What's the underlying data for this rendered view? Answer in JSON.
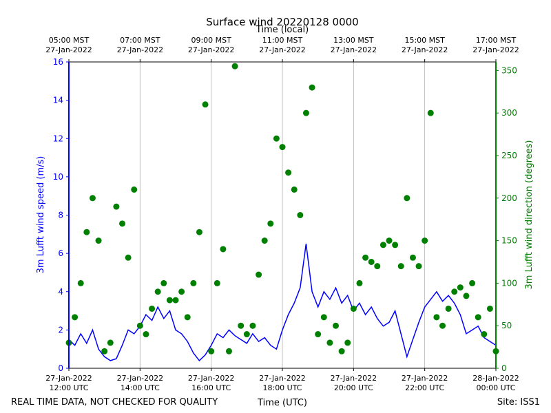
{
  "chart_data": {
    "type": "line_scatter",
    "title": "Surface wind 20220128 0000",
    "x2_label": "Time (local)",
    "xlabel": "Time (UTC)",
    "ylabel": "3m Lufft wind speed (m/s)",
    "y2label": "3m Lufft wind direction (degrees)",
    "footnote_left": "REAL TIME DATA, NOT CHECKED FOR QUALITY",
    "footnote_right": "Site: ISS1",
    "xlim": [
      "2022-01-27T12:00",
      "2022-01-28T00:00"
    ],
    "xticks": [
      {
        "value": "2022-01-27T12:00",
        "label": "27-Jan-2022\n12:00 UTC"
      },
      {
        "value": "2022-01-27T14:00",
        "label": "27-Jan-2022\n14:00 UTC"
      },
      {
        "value": "2022-01-27T16:00",
        "label": "27-Jan-2022\n16:00 UTC"
      },
      {
        "value": "2022-01-27T18:00",
        "label": "27-Jan-2022\n18:00 UTC"
      },
      {
        "value": "2022-01-27T20:00",
        "label": "27-Jan-2022\n20:00 UTC"
      },
      {
        "value": "2022-01-27T22:00",
        "label": "27-Jan-2022\n22:00 UTC"
      },
      {
        "value": "2022-01-28T00:00",
        "label": "28-Jan-2022\n00:00 UTC"
      }
    ],
    "x2ticks": [
      {
        "value": "2022-01-27T12:00",
        "label": "05:00 MST\n27-Jan-2022"
      },
      {
        "value": "2022-01-27T14:00",
        "label": "07:00 MST\n27-Jan-2022"
      },
      {
        "value": "2022-01-27T16:00",
        "label": "09:00 MST\n27-Jan-2022"
      },
      {
        "value": "2022-01-27T18:00",
        "label": "11:00 MST\n27-Jan-2022"
      },
      {
        "value": "2022-01-27T20:00",
        "label": "13:00 MST\n27-Jan-2022"
      },
      {
        "value": "2022-01-27T22:00",
        "label": "15:00 MST\n27-Jan-2022"
      },
      {
        "value": "2022-01-28T00:00",
        "label": "17:00 MST\n27-Jan-2022"
      }
    ],
    "ylim": [
      0,
      16
    ],
    "yticks": [
      0,
      2,
      4,
      6,
      8,
      10,
      12,
      14,
      16
    ],
    "y2lim": [
      0,
      360
    ],
    "y2ticks": [
      0,
      50,
      100,
      150,
      200,
      250,
      300,
      350
    ],
    "grid": true,
    "x": [
      "2022-01-27T12:00",
      "2022-01-27T12:10",
      "2022-01-27T12:20",
      "2022-01-27T12:30",
      "2022-01-27T12:40",
      "2022-01-27T12:50",
      "2022-01-27T13:00",
      "2022-01-27T13:10",
      "2022-01-27T13:20",
      "2022-01-27T13:30",
      "2022-01-27T13:40",
      "2022-01-27T13:50",
      "2022-01-27T14:00",
      "2022-01-27T14:10",
      "2022-01-27T14:20",
      "2022-01-27T14:30",
      "2022-01-27T14:40",
      "2022-01-27T14:50",
      "2022-01-27T15:00",
      "2022-01-27T15:10",
      "2022-01-27T15:20",
      "2022-01-27T15:30",
      "2022-01-27T15:40",
      "2022-01-27T15:50",
      "2022-01-27T16:00",
      "2022-01-27T16:10",
      "2022-01-27T16:20",
      "2022-01-27T16:30",
      "2022-01-27T16:40",
      "2022-01-27T16:50",
      "2022-01-27T17:00",
      "2022-01-27T17:10",
      "2022-01-27T17:20",
      "2022-01-27T17:30",
      "2022-01-27T17:40",
      "2022-01-27T17:50",
      "2022-01-27T18:00",
      "2022-01-27T18:10",
      "2022-01-27T18:20",
      "2022-01-27T18:30",
      "2022-01-27T18:40",
      "2022-01-27T18:50",
      "2022-01-27T19:00",
      "2022-01-27T19:10",
      "2022-01-27T19:20",
      "2022-01-27T19:30",
      "2022-01-27T19:40",
      "2022-01-27T19:50",
      "2022-01-27T20:00",
      "2022-01-27T20:10",
      "2022-01-27T20:20",
      "2022-01-27T20:30",
      "2022-01-27T20:40",
      "2022-01-27T20:50",
      "2022-01-27T21:00",
      "2022-01-27T21:10",
      "2022-01-27T21:20",
      "2022-01-27T21:30",
      "2022-01-27T21:40",
      "2022-01-27T21:50",
      "2022-01-27T22:00",
      "2022-01-27T22:10",
      "2022-01-27T22:20",
      "2022-01-27T22:30",
      "2022-01-27T22:40",
      "2022-01-27T22:50",
      "2022-01-27T23:00",
      "2022-01-27T23:10",
      "2022-01-27T23:20",
      "2022-01-27T23:30",
      "2022-01-27T23:40",
      "2022-01-27T23:50",
      "2022-01-28T00:00"
    ],
    "series": [
      {
        "name": "3m Lufft wind speed (m/s)",
        "color": "#0000ff",
        "axis": "y",
        "values": [
          1.5,
          1.2,
          1.8,
          1.3,
          2.0,
          1.0,
          0.6,
          0.4,
          0.5,
          1.2,
          2.0,
          1.8,
          2.2,
          2.8,
          2.5,
          3.2,
          2.6,
          3.0,
          2.0,
          1.8,
          1.4,
          0.8,
          0.4,
          0.7,
          1.2,
          1.8,
          1.6,
          2.0,
          1.7,
          1.5,
          1.3,
          1.8,
          1.4,
          1.6,
          1.2,
          1.0,
          2.0,
          2.8,
          3.4,
          4.2,
          6.5,
          4.0,
          3.2,
          4.0,
          3.6,
          4.2,
          3.4,
          3.8,
          3.0,
          3.4,
          2.8,
          3.2,
          2.6,
          2.2,
          2.4,
          3.0,
          1.8,
          0.6,
          1.5,
          2.4,
          3.2,
          3.6,
          4.0,
          3.5,
          3.8,
          3.4,
          2.8,
          1.8,
          2.0,
          2.2,
          1.6,
          1.4,
          1.2
        ]
      },
      {
        "name": "3m Lufft wind direction (degrees)",
        "color": "#008000",
        "axis": "y2",
        "values": [
          30,
          60,
          100,
          160,
          200,
          150,
          20,
          30,
          190,
          170,
          130,
          210,
          50,
          40,
          70,
          90,
          100,
          80,
          80,
          90,
          60,
          100,
          160,
          310,
          20,
          100,
          140,
          20,
          355,
          50,
          40,
          50,
          110,
          150,
          170,
          270,
          260,
          230,
          210,
          180,
          300,
          330,
          40,
          60,
          30,
          50,
          20,
          30,
          70,
          100,
          130,
          125,
          120,
          145,
          150,
          145,
          120,
          200,
          130,
          120,
          150,
          300,
          60,
          50,
          70,
          90,
          95,
          85,
          100,
          60,
          40,
          70,
          20
        ]
      }
    ]
  }
}
